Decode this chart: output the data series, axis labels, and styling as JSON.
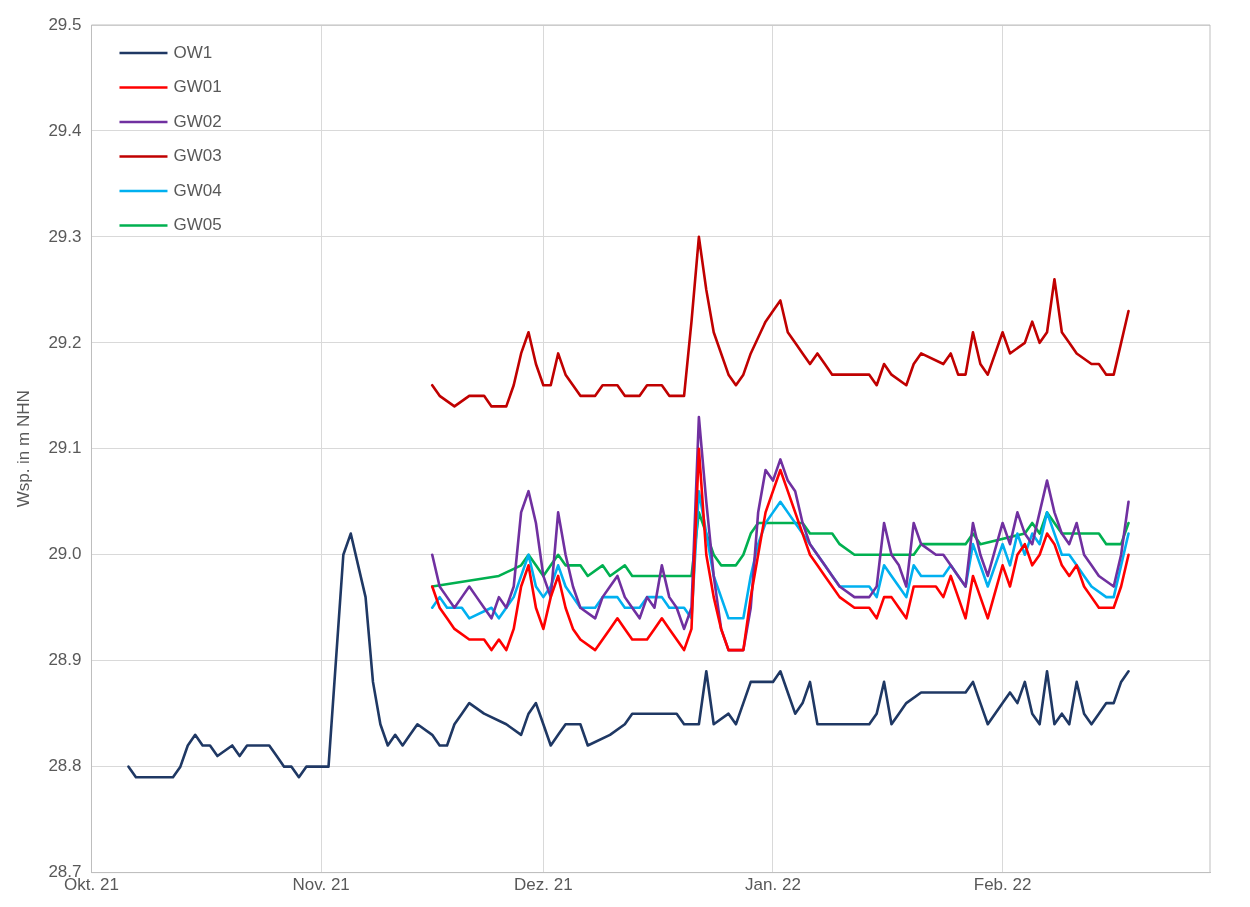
{
  "chart_data": {
    "type": "line",
    "ylabel": "Wsp. in m NHN",
    "xlim": [
      "2021-10-01",
      "2022-03-01"
    ],
    "xticks": [
      {
        "value": "2021-10-01",
        "label": "Okt. 21"
      },
      {
        "value": "2021-11-01",
        "label": "Nov. 21"
      },
      {
        "value": "2021-12-01",
        "label": "Dez. 21"
      },
      {
        "value": "2022-01-01",
        "label": "Jan. 22"
      },
      {
        "value": "2022-02-01",
        "label": "Feb. 22"
      }
    ],
    "ylim": [
      28.7,
      29.5
    ],
    "yticks": [
      {
        "value": 28.7,
        "label": "28.7"
      },
      {
        "value": 28.8,
        "label": "28.8"
      },
      {
        "value": 28.9,
        "label": "28.9"
      },
      {
        "value": 29.0,
        "label": "29.0"
      },
      {
        "value": 29.1,
        "label": "29.1"
      },
      {
        "value": 29.2,
        "label": "29.2"
      },
      {
        "value": 29.3,
        "label": "29.3"
      },
      {
        "value": 29.4,
        "label": "29.4"
      },
      {
        "value": 29.5,
        "label": "29.5"
      }
    ],
    "grid": true,
    "legend": "top left",
    "marker": "none",
    "line_style": "solid",
    "series": [
      {
        "name": "OW1",
        "color": "#1f3864",
        "x": [
          "2021-10-06",
          "2021-10-07",
          "2021-10-12",
          "2021-10-13",
          "2021-10-14",
          "2021-10-15",
          "2021-10-16",
          "2021-10-17",
          "2021-10-18",
          "2021-10-20",
          "2021-10-21",
          "2021-10-22",
          "2021-10-25",
          "2021-10-26",
          "2021-10-27",
          "2021-10-28",
          "2021-10-29",
          "2021-10-30",
          "2021-11-02",
          "2021-11-03",
          "2021-11-04",
          "2021-11-05",
          "2021-11-06",
          "2021-11-07",
          "2021-11-08",
          "2021-11-09",
          "2021-11-10",
          "2021-11-11",
          "2021-11-12",
          "2021-11-13",
          "2021-11-14",
          "2021-11-16",
          "2021-11-17",
          "2021-11-18",
          "2021-11-19",
          "2021-11-20",
          "2021-11-21",
          "2021-11-23",
          "2021-11-26",
          "2021-11-28",
          "2021-11-29",
          "2021-11-30",
          "2021-12-01",
          "2021-12-02",
          "2021-12-03",
          "2021-12-04",
          "2021-12-06",
          "2021-12-07",
          "2021-12-10",
          "2021-12-12",
          "2021-12-13",
          "2021-12-19",
          "2021-12-20",
          "2021-12-22",
          "2021-12-23",
          "2021-12-24",
          "2021-12-26",
          "2021-12-27",
          "2021-12-28",
          "2021-12-29",
          "2022-01-01",
          "2022-01-02",
          "2022-01-03",
          "2022-01-04",
          "2022-01-05",
          "2022-01-06",
          "2022-01-07",
          "2022-01-14",
          "2022-01-15",
          "2022-01-16",
          "2022-01-17",
          "2022-01-18",
          "2022-01-19",
          "2022-01-21",
          "2022-01-27",
          "2022-01-28",
          "2022-01-29",
          "2022-01-30",
          "2022-02-01",
          "2022-02-02",
          "2022-02-03",
          "2022-02-04",
          "2022-02-05",
          "2022-02-06",
          "2022-02-07",
          "2022-02-08",
          "2022-02-09",
          "2022-02-10",
          "2022-02-11",
          "2022-02-12",
          "2022-02-13",
          "2022-02-14",
          "2022-02-15",
          "2022-02-16",
          "2022-02-17",
          "2022-02-18"
        ],
        "values": [
          28.8,
          28.79,
          28.79,
          28.8,
          28.82,
          28.83,
          28.82,
          28.82,
          28.81,
          28.82,
          28.81,
          28.82,
          28.82,
          28.81,
          28.8,
          28.8,
          28.79,
          28.8,
          28.8,
          28.9,
          29.0,
          29.02,
          28.99,
          28.96,
          28.88,
          28.84,
          28.82,
          28.83,
          28.82,
          28.83,
          28.84,
          28.83,
          28.82,
          28.82,
          28.84,
          28.85,
          28.86,
          28.85,
          28.84,
          28.83,
          28.85,
          28.86,
          28.84,
          28.82,
          28.83,
          28.84,
          28.84,
          28.82,
          28.83,
          28.84,
          28.85,
          28.85,
          28.84,
          28.84,
          28.89,
          28.84,
          28.85,
          28.84,
          28.86,
          28.88,
          28.88,
          28.89,
          28.87,
          28.85,
          28.86,
          28.88,
          28.84,
          28.84,
          28.85,
          28.88,
          28.84,
          28.85,
          28.86,
          28.87,
          28.87,
          28.88,
          28.86,
          28.84,
          28.86,
          28.87,
          28.86,
          28.88,
          28.85,
          28.84,
          28.89,
          28.84,
          28.85,
          28.84,
          28.88,
          28.85,
          28.84,
          28.85,
          28.86,
          28.86,
          28.88,
          28.89
        ]
      },
      {
        "name": "GW01",
        "color": "#ff0000",
        "x": [
          "2021-11-16",
          "2021-11-17",
          "2021-11-18",
          "2021-11-19",
          "2021-11-21",
          "2021-11-23",
          "2021-11-24",
          "2021-11-25",
          "2021-11-26",
          "2021-11-27",
          "2021-11-28",
          "2021-11-29",
          "2021-11-30",
          "2021-12-01",
          "2021-12-02",
          "2021-12-03",
          "2021-12-04",
          "2021-12-05",
          "2021-12-06",
          "2021-12-08",
          "2021-12-09",
          "2021-12-10",
          "2021-12-11",
          "2021-12-12",
          "2021-12-13",
          "2021-12-15",
          "2021-12-16",
          "2021-12-17",
          "2021-12-18",
          "2021-12-19",
          "2021-12-20",
          "2021-12-21",
          "2021-12-22",
          "2021-12-23",
          "2021-12-24",
          "2021-12-25",
          "2021-12-26",
          "2021-12-28",
          "2021-12-29",
          "2021-12-30",
          "2021-12-31",
          "2022-01-01",
          "2022-01-02",
          "2022-01-03",
          "2022-01-04",
          "2022-01-05",
          "2022-01-06",
          "2022-01-07",
          "2022-01-08",
          "2022-01-09",
          "2022-01-10",
          "2022-01-12",
          "2022-01-14",
          "2022-01-15",
          "2022-01-16",
          "2022-01-17",
          "2022-01-18",
          "2022-01-19",
          "2022-01-20",
          "2022-01-21",
          "2022-01-23",
          "2022-01-24",
          "2022-01-25",
          "2022-01-26",
          "2022-01-27",
          "2022-01-28",
          "2022-01-29",
          "2022-01-30",
          "2022-02-01",
          "2022-02-02",
          "2022-02-03",
          "2022-02-04",
          "2022-02-05",
          "2022-02-06",
          "2022-02-07",
          "2022-02-08",
          "2022-02-09",
          "2022-02-10",
          "2022-02-11",
          "2022-02-12",
          "2022-02-13",
          "2022-02-14",
          "2022-02-16",
          "2022-02-17",
          "2022-02-18"
        ],
        "values": [
          28.97,
          28.95,
          28.94,
          28.93,
          28.92,
          28.92,
          28.91,
          28.92,
          28.91,
          28.93,
          28.97,
          28.99,
          28.95,
          28.93,
          28.96,
          28.98,
          28.95,
          28.93,
          28.92,
          28.91,
          28.92,
          28.93,
          28.94,
          28.93,
          28.92,
          28.92,
          28.93,
          28.94,
          28.93,
          28.92,
          28.91,
          28.93,
          29.1,
          29.0,
          28.96,
          28.93,
          28.91,
          28.91,
          28.96,
          29.0,
          29.04,
          29.06,
          29.08,
          29.06,
          29.04,
          29.02,
          29.0,
          28.99,
          28.98,
          28.97,
          28.96,
          28.95,
          28.95,
          28.94,
          28.96,
          28.96,
          28.95,
          28.94,
          28.97,
          28.97,
          28.97,
          28.96,
          28.98,
          28.96,
          28.94,
          28.98,
          28.96,
          28.94,
          28.99,
          28.97,
          29.0,
          29.01,
          28.99,
          29.0,
          29.02,
          29.01,
          28.99,
          28.98,
          28.99,
          28.97,
          28.96,
          28.95,
          28.95,
          28.97,
          29.0
        ]
      },
      {
        "name": "GW02",
        "color": "#7030a0",
        "x": [
          "2021-11-16",
          "2021-11-17",
          "2021-11-18",
          "2021-11-19",
          "2021-11-20",
          "2021-11-21",
          "2021-11-22",
          "2021-11-23",
          "2021-11-24",
          "2021-11-25",
          "2021-11-26",
          "2021-11-27",
          "2021-11-28",
          "2021-11-29",
          "2021-11-30",
          "2021-12-01",
          "2021-12-02",
          "2021-12-03",
          "2021-12-04",
          "2021-12-05",
          "2021-12-06",
          "2021-12-08",
          "2021-12-09",
          "2021-12-10",
          "2021-12-11",
          "2021-12-12",
          "2021-12-13",
          "2021-12-14",
          "2021-12-15",
          "2021-12-16",
          "2021-12-17",
          "2021-12-18",
          "2021-12-19",
          "2021-12-20",
          "2021-12-21",
          "2021-12-22",
          "2021-12-23",
          "2021-12-24",
          "2021-12-25",
          "2021-12-26",
          "2021-12-28",
          "2021-12-29",
          "2021-12-30",
          "2021-12-31",
          "2022-01-01",
          "2022-01-02",
          "2022-01-03",
          "2022-01-04",
          "2022-01-05",
          "2022-01-06",
          "2022-01-07",
          "2022-01-08",
          "2022-01-09",
          "2022-01-10",
          "2022-01-12",
          "2022-01-14",
          "2022-01-15",
          "2022-01-16",
          "2022-01-17",
          "2022-01-18",
          "2022-01-19",
          "2022-01-20",
          "2022-01-21",
          "2022-01-23",
          "2022-01-24",
          "2022-01-25",
          "2022-01-26",
          "2022-01-27",
          "2022-01-28",
          "2022-01-29",
          "2022-01-30",
          "2022-02-01",
          "2022-02-02",
          "2022-02-03",
          "2022-02-04",
          "2022-02-05",
          "2022-02-06",
          "2022-02-07",
          "2022-02-08",
          "2022-02-09",
          "2022-02-10",
          "2022-02-11",
          "2022-02-12",
          "2022-02-13",
          "2022-02-14",
          "2022-02-16",
          "2022-02-17",
          "2022-02-18"
        ],
        "values": [
          29.0,
          28.97,
          28.96,
          28.95,
          28.96,
          28.97,
          28.96,
          28.95,
          28.94,
          28.96,
          28.95,
          28.97,
          29.04,
          29.06,
          29.03,
          28.98,
          28.96,
          29.04,
          29.0,
          28.97,
          28.95,
          28.94,
          28.96,
          28.97,
          28.98,
          28.96,
          28.95,
          28.94,
          28.96,
          28.95,
          28.99,
          28.96,
          28.95,
          28.93,
          28.95,
          29.13,
          29.05,
          28.98,
          28.93,
          28.91,
          28.91,
          28.95,
          29.04,
          29.08,
          29.07,
          29.09,
          29.07,
          29.06,
          29.03,
          29.01,
          29.0,
          28.99,
          28.98,
          28.97,
          28.96,
          28.96,
          28.97,
          29.03,
          29.0,
          28.99,
          28.97,
          29.03,
          29.01,
          29.0,
          29.0,
          28.99,
          28.98,
          28.97,
          29.03,
          29.0,
          28.98,
          29.03,
          29.01,
          29.04,
          29.02,
          29.01,
          29.04,
          29.07,
          29.04,
          29.02,
          29.01,
          29.03,
          29.0,
          28.99,
          28.98,
          28.97,
          29.0,
          29.05
        ]
      },
      {
        "name": "GW03",
        "color": "#c00000",
        "x": [
          "2021-11-16",
          "2021-11-17",
          "2021-11-19",
          "2021-11-21",
          "2021-11-23",
          "2021-11-24",
          "2021-11-26",
          "2021-11-27",
          "2021-11-28",
          "2021-11-29",
          "2021-11-30",
          "2021-12-01",
          "2021-12-02",
          "2021-12-03",
          "2021-12-04",
          "2021-12-05",
          "2021-12-06",
          "2021-12-08",
          "2021-12-09",
          "2021-12-11",
          "2021-12-12",
          "2021-12-14",
          "2021-12-15",
          "2021-12-17",
          "2021-12-18",
          "2021-12-20",
          "2021-12-21",
          "2021-12-22",
          "2021-12-23",
          "2021-12-24",
          "2021-12-26",
          "2021-12-27",
          "2021-12-28",
          "2021-12-29",
          "2021-12-31",
          "2022-01-01",
          "2022-01-02",
          "2022-01-03",
          "2022-01-04",
          "2022-01-05",
          "2022-01-06",
          "2022-01-07",
          "2022-01-08",
          "2022-01-09",
          "2022-01-12",
          "2022-01-14",
          "2022-01-15",
          "2022-01-16",
          "2022-01-17",
          "2022-01-19",
          "2022-01-20",
          "2022-01-21",
          "2022-01-24",
          "2022-01-25",
          "2022-01-26",
          "2022-01-27",
          "2022-01-28",
          "2022-01-29",
          "2022-01-30",
          "2022-02-01",
          "2022-02-02",
          "2022-02-04",
          "2022-02-05",
          "2022-02-06",
          "2022-02-07",
          "2022-02-08",
          "2022-02-09",
          "2022-02-10",
          "2022-02-11",
          "2022-02-13",
          "2022-02-14",
          "2022-02-15",
          "2022-02-16",
          "2022-02-17",
          "2022-02-18"
        ],
        "values": [
          29.16,
          29.15,
          29.14,
          29.15,
          29.15,
          29.14,
          29.14,
          29.16,
          29.19,
          29.21,
          29.18,
          29.16,
          29.16,
          29.19,
          29.17,
          29.16,
          29.15,
          29.15,
          29.16,
          29.16,
          29.15,
          29.15,
          29.16,
          29.16,
          29.15,
          29.15,
          29.22,
          29.3,
          29.25,
          29.21,
          29.17,
          29.16,
          29.17,
          29.19,
          29.22,
          29.23,
          29.24,
          29.21,
          29.2,
          29.19,
          29.18,
          29.19,
          29.18,
          29.17,
          29.17,
          29.17,
          29.16,
          29.18,
          29.17,
          29.16,
          29.18,
          29.19,
          29.18,
          29.19,
          29.17,
          29.17,
          29.21,
          29.18,
          29.17,
          29.21,
          29.19,
          29.2,
          29.22,
          29.2,
          29.21,
          29.26,
          29.21,
          29.2,
          29.19,
          29.18,
          29.18,
          29.17,
          29.17,
          29.2,
          29.23
        ]
      },
      {
        "name": "GW04",
        "color": "#00b0f0",
        "x": [
          "2021-11-16",
          "2021-11-17",
          "2021-11-18",
          "2021-11-20",
          "2021-11-21",
          "2021-11-24",
          "2021-11-25",
          "2021-11-26",
          "2021-11-27",
          "2021-11-28",
          "2021-11-29",
          "2021-11-30",
          "2021-12-01",
          "2021-12-02",
          "2021-12-03",
          "2021-12-04",
          "2021-12-05",
          "2021-12-06",
          "2021-12-08",
          "2021-12-09",
          "2021-12-11",
          "2021-12-12",
          "2021-12-14",
          "2021-12-15",
          "2021-12-17",
          "2021-12-18",
          "2021-12-20",
          "2021-12-21",
          "2021-12-22",
          "2021-12-23",
          "2021-12-24",
          "2021-12-25",
          "2021-12-26",
          "2021-12-28",
          "2021-12-29",
          "2021-12-30",
          "2021-12-31",
          "2022-01-01",
          "2022-01-02",
          "2022-01-03",
          "2022-01-04",
          "2022-01-05",
          "2022-01-06",
          "2022-01-07",
          "2022-01-08",
          "2022-01-09",
          "2022-01-10",
          "2022-01-14",
          "2022-01-15",
          "2022-01-16",
          "2022-01-17",
          "2022-01-18",
          "2022-01-19",
          "2022-01-20",
          "2022-01-21",
          "2022-01-24",
          "2022-01-25",
          "2022-01-26",
          "2022-01-27",
          "2022-01-28",
          "2022-01-29",
          "2022-01-30",
          "2022-02-01",
          "2022-02-02",
          "2022-02-03",
          "2022-02-04",
          "2022-02-05",
          "2022-02-06",
          "2022-02-07",
          "2022-02-08",
          "2022-02-09",
          "2022-02-10",
          "2022-02-11",
          "2022-02-12",
          "2022-02-13",
          "2022-02-15",
          "2022-02-16",
          "2022-02-17",
          "2022-02-18"
        ],
        "values": [
          28.95,
          28.96,
          28.95,
          28.95,
          28.94,
          28.95,
          28.94,
          28.95,
          28.96,
          28.98,
          29.0,
          28.97,
          28.96,
          28.97,
          28.99,
          28.97,
          28.96,
          28.95,
          28.95,
          28.96,
          28.96,
          28.95,
          28.95,
          28.96,
          28.96,
          28.95,
          28.95,
          28.94,
          29.06,
          29.02,
          28.98,
          28.96,
          28.94,
          28.94,
          28.98,
          29.01,
          29.03,
          29.04,
          29.05,
          29.04,
          29.03,
          29.02,
          29.01,
          29.0,
          28.99,
          28.98,
          28.97,
          28.97,
          28.96,
          28.99,
          28.98,
          28.97,
          28.96,
          28.99,
          28.98,
          28.98,
          28.99,
          28.98,
          28.97,
          29.01,
          28.99,
          28.97,
          29.01,
          28.99,
          29.02,
          29.0,
          29.02,
          29.01,
          29.04,
          29.02,
          29.0,
          29.0,
          28.99,
          28.98,
          28.97,
          28.96,
          28.96,
          28.99,
          29.02
        ]
      },
      {
        "name": "GW05",
        "color": "#00b050",
        "x": [
          "2021-11-16",
          "2021-11-25",
          "2021-11-28",
          "2021-11-29",
          "2021-11-30",
          "2021-12-01",
          "2021-12-02",
          "2021-12-03",
          "2021-12-04",
          "2021-12-06",
          "2021-12-07",
          "2021-12-09",
          "2021-12-10",
          "2021-12-12",
          "2021-12-13",
          "2021-12-21",
          "2021-12-22",
          "2021-12-23",
          "2021-12-24",
          "2021-12-25",
          "2021-12-27",
          "2021-12-28",
          "2021-12-29",
          "2021-12-30",
          "2022-01-05",
          "2022-01-06",
          "2022-01-09",
          "2022-01-10",
          "2022-01-12",
          "2022-01-20",
          "2022-01-21",
          "2022-01-27",
          "2022-01-28",
          "2022-01-29",
          "2022-02-04",
          "2022-02-05",
          "2022-02-06",
          "2022-02-07",
          "2022-02-08",
          "2022-02-09",
          "2022-02-14",
          "2022-02-15",
          "2022-02-17",
          "2022-02-18"
        ],
        "values": [
          28.97,
          28.98,
          28.99,
          29.0,
          28.99,
          28.98,
          28.99,
          29.0,
          28.99,
          28.99,
          28.98,
          28.99,
          28.98,
          28.99,
          28.98,
          28.98,
          29.04,
          29.02,
          29.0,
          28.99,
          28.99,
          29.0,
          29.02,
          29.03,
          29.03,
          29.02,
          29.02,
          29.01,
          29.0,
          29.0,
          29.01,
          29.01,
          29.02,
          29.01,
          29.02,
          29.03,
          29.02,
          29.04,
          29.03,
          29.02,
          29.02,
          29.01,
          29.01,
          29.03
        ]
      }
    ]
  }
}
